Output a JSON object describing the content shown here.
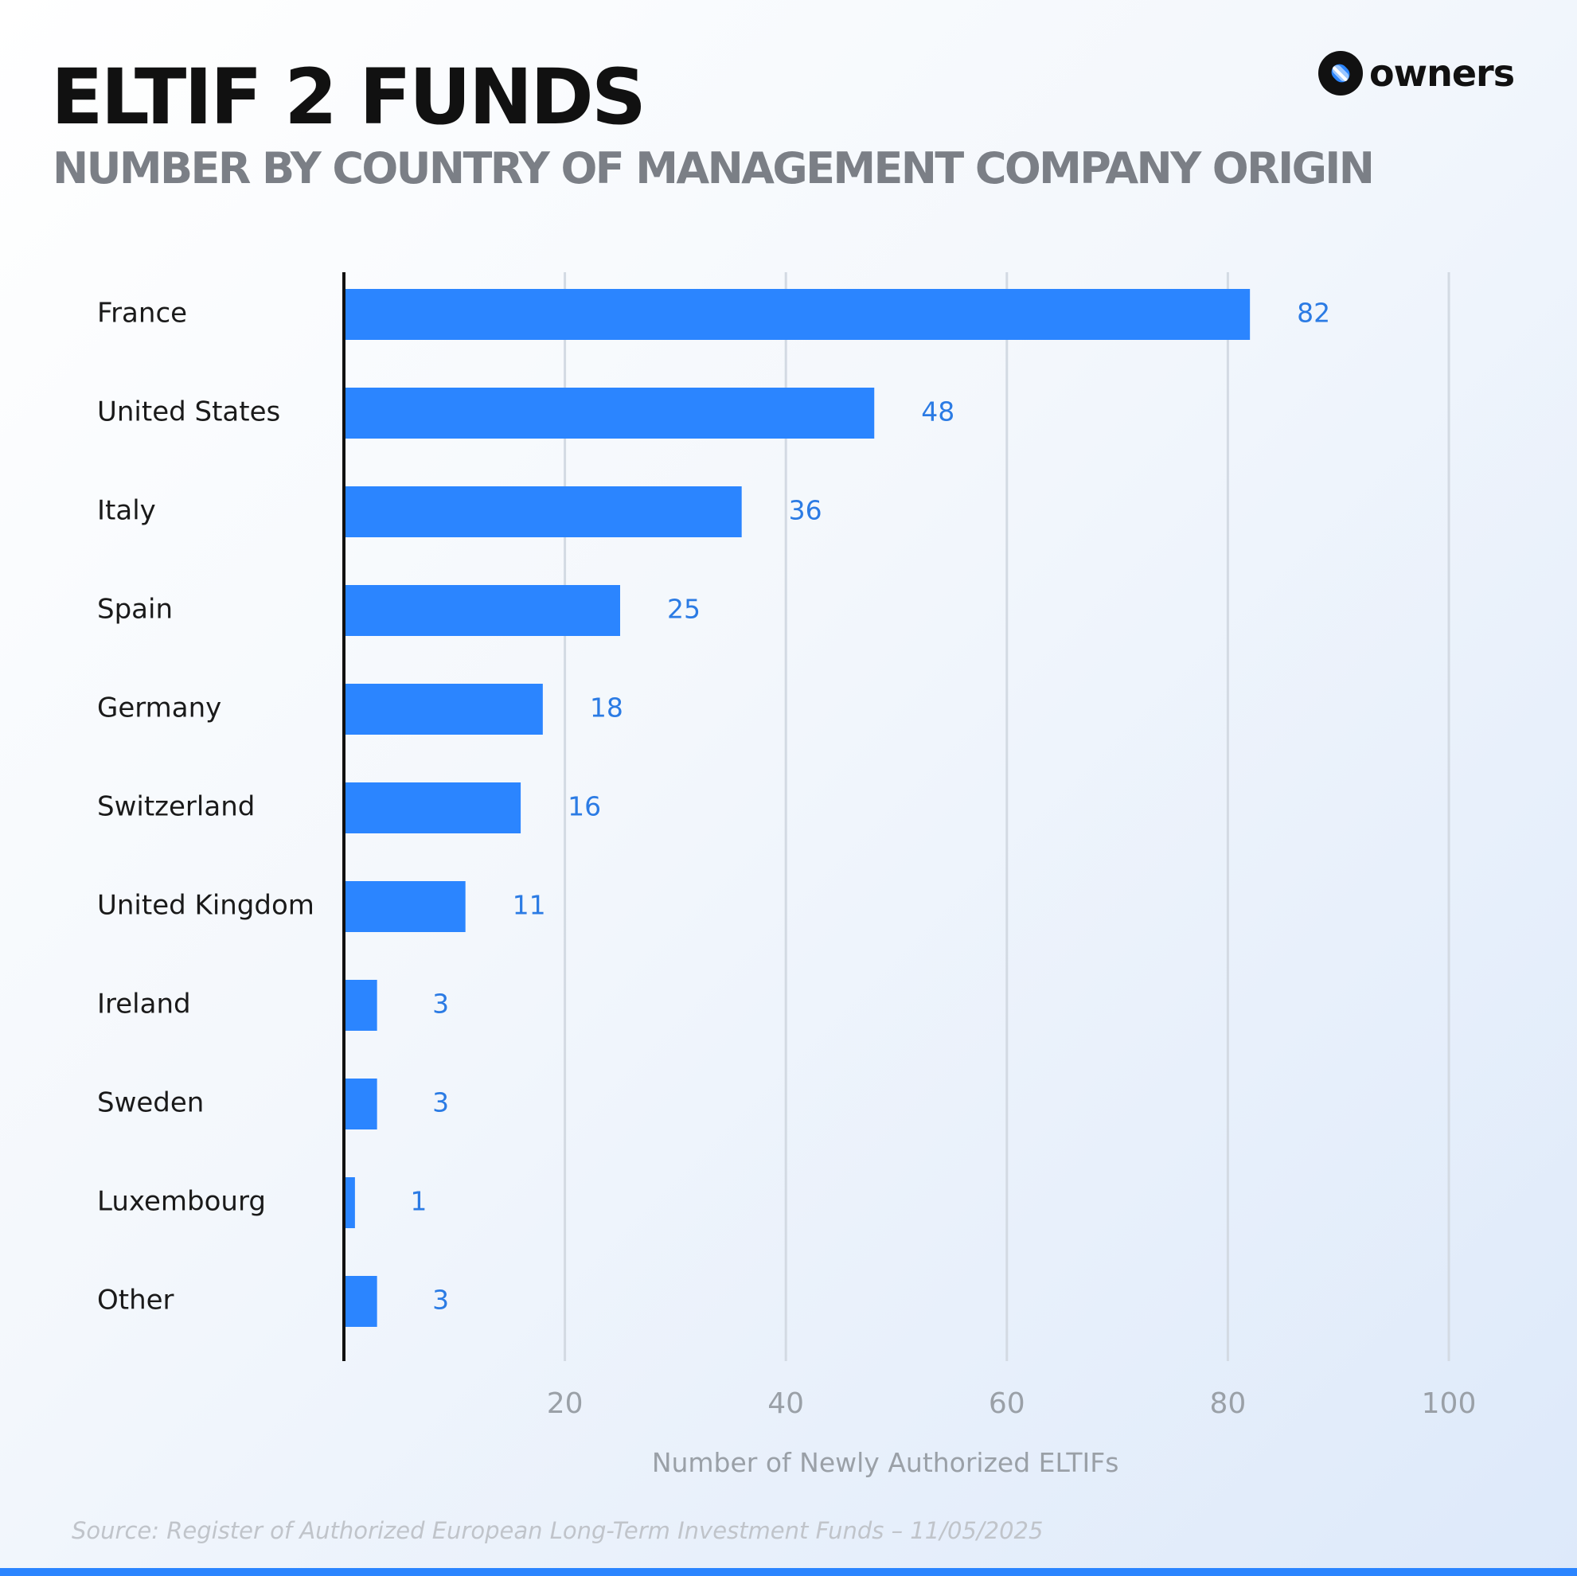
{
  "header": {
    "title": "ELTIF 2 FUNDS",
    "subtitle": "NUMBER BY COUNTRY OF MANAGEMENT COMPANY ORIGIN"
  },
  "brand": {
    "name": "owners",
    "icon": "owners-logo-icon"
  },
  "footer": {
    "source": "Source: Register of Authorized European Long-Term Investment Funds – 11/05/2025"
  },
  "colors": {
    "bar": "#2b85ff",
    "value_label": "#2b7be4",
    "grid": "#d3dae3",
    "axis": "#111111",
    "tick_label": "#9aa0a7"
  },
  "chart_data": {
    "type": "bar",
    "orientation": "horizontal",
    "categories": [
      "France",
      "United States",
      "Italy",
      "Spain",
      "Germany",
      "Switzerland",
      "United Kingdom",
      "Ireland",
      "Sweden",
      "Luxembourg",
      "Other"
    ],
    "values": [
      82,
      48,
      36,
      25,
      18,
      16,
      11,
      3,
      3,
      1,
      3
    ],
    "xlabel": "Number of Newly Authorized ELTIFs",
    "ylabel": "",
    "xlim": [
      0,
      100
    ],
    "xticks": [
      20,
      40,
      60,
      80,
      100
    ],
    "grid": "vertical",
    "data_labels": true
  }
}
